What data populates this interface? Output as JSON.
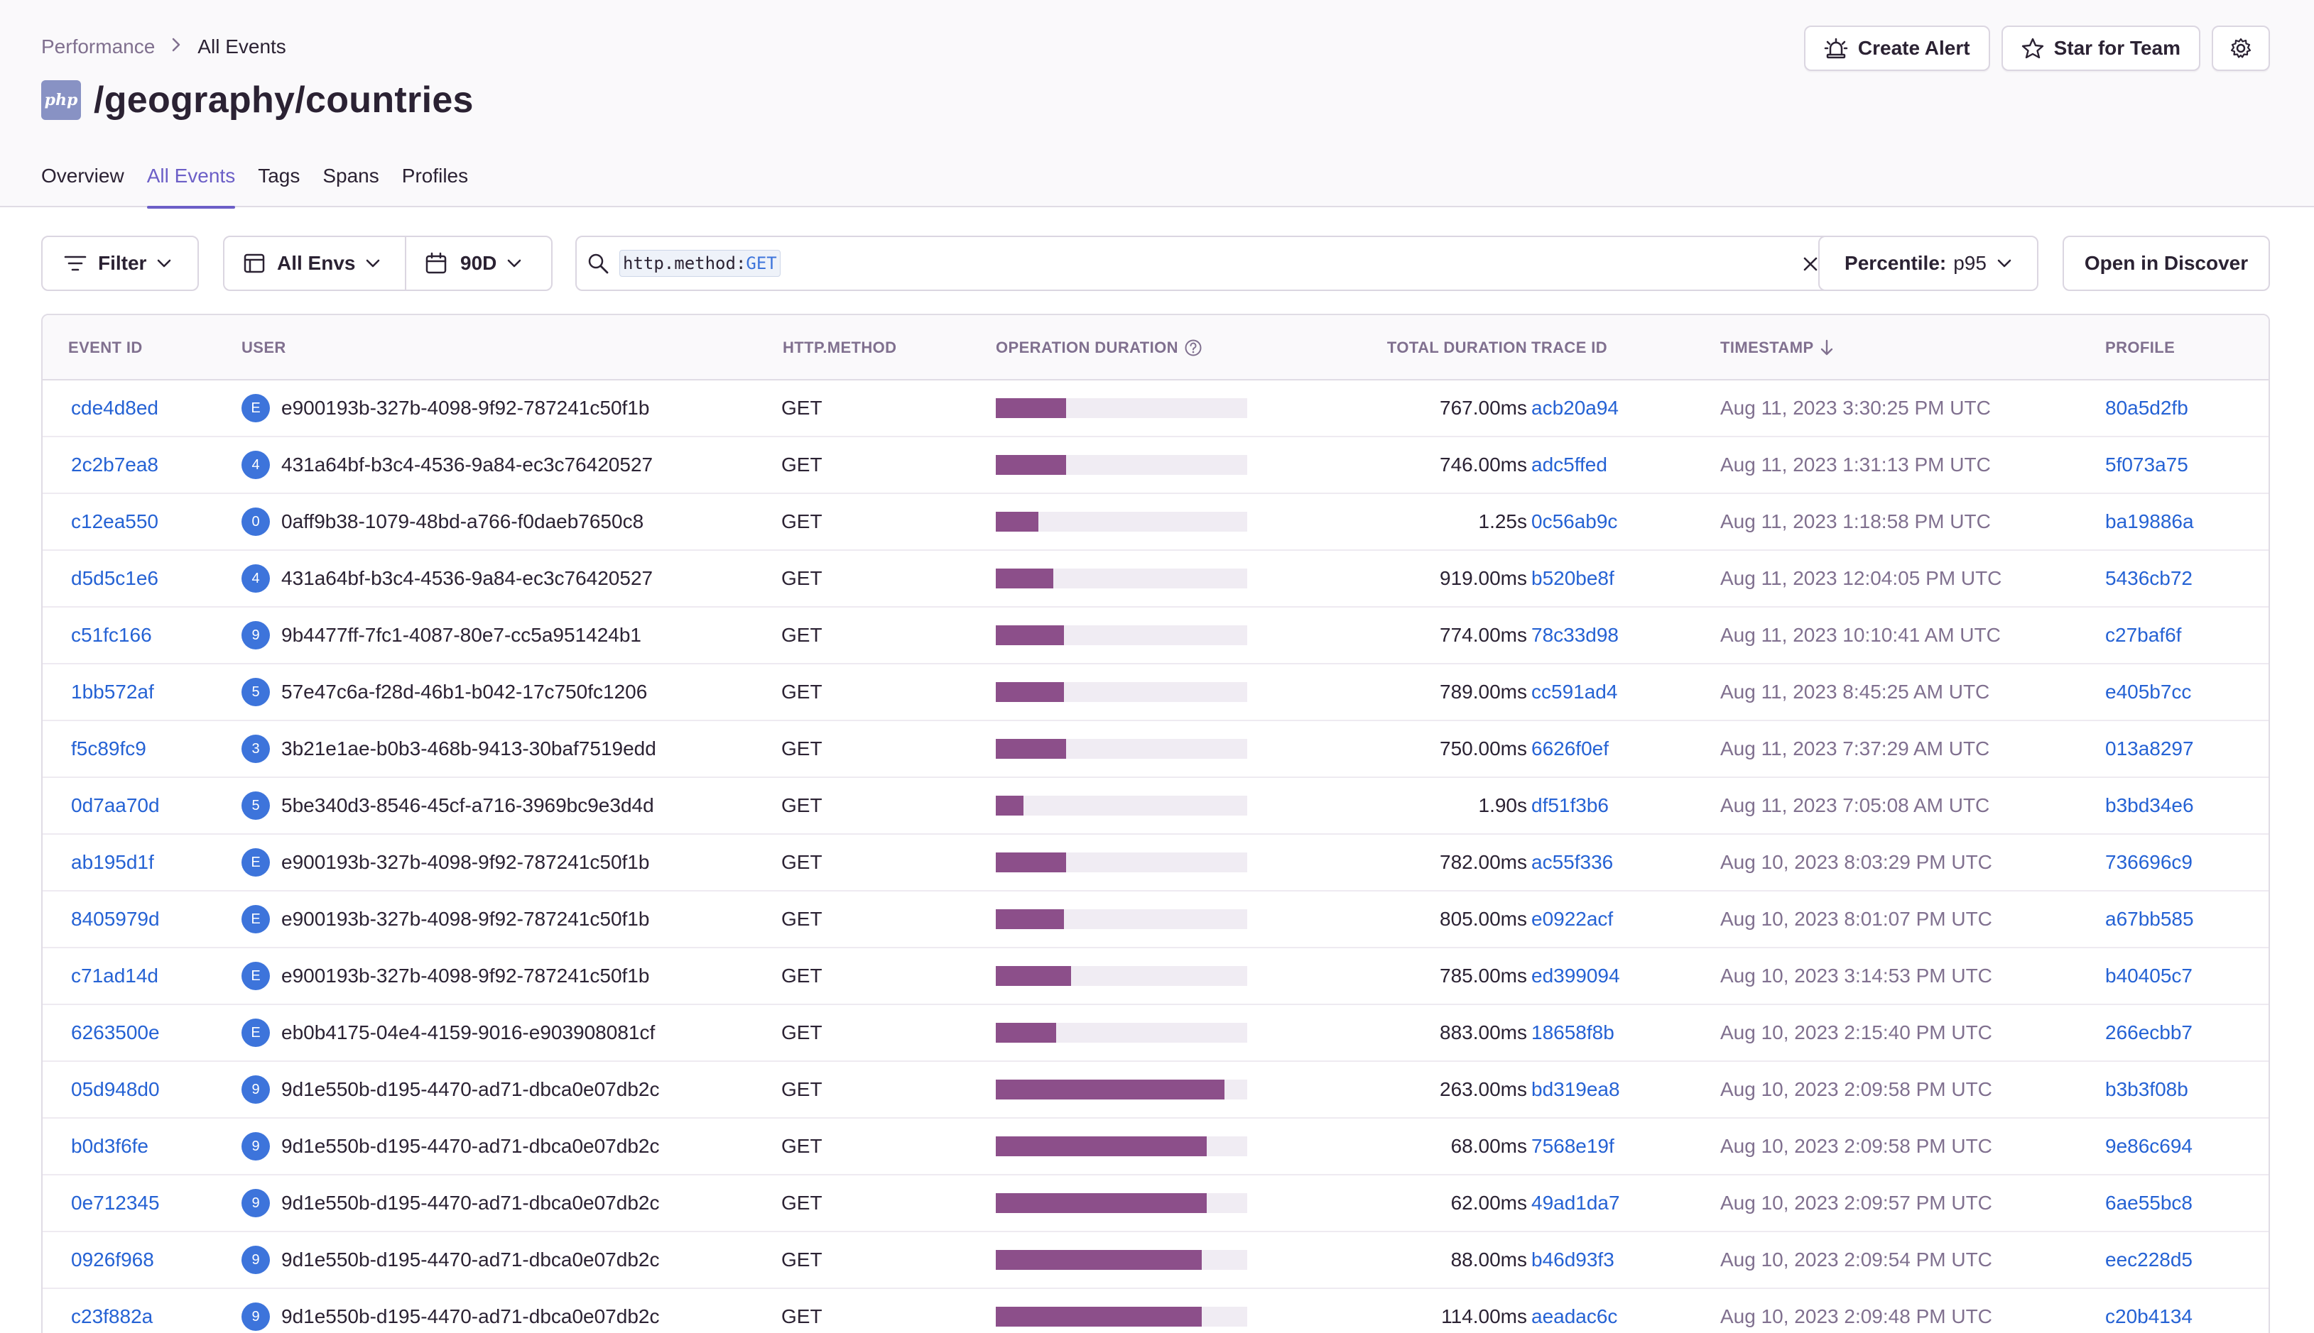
{
  "breadcrumb": {
    "parent": "Performance",
    "current": "All Events"
  },
  "header": {
    "platform_badge": "php",
    "title": "/geography/countries"
  },
  "actions": {
    "create_alert": "Create Alert",
    "star_for_team": "Star for Team"
  },
  "tabs": [
    "Overview",
    "All Events",
    "Tags",
    "Spans",
    "Profiles"
  ],
  "active_tab": "All Events",
  "filters": {
    "filter_label": "Filter",
    "env_label": "All Envs",
    "period_label": "90D",
    "search_key": "http.method:",
    "search_value": "GET",
    "percentile_label": "Percentile:",
    "percentile_value": "p95",
    "open_discover": "Open in Discover"
  },
  "columns": {
    "event_id": "EVENT ID",
    "user": "USER",
    "http_method": "HTTP.METHOD",
    "operation_duration": "OPERATION DURATION",
    "total_duration": "TOTAL DURATION",
    "trace_id": "TRACE ID",
    "timestamp": "TIMESTAMP",
    "profile": "PROFILE"
  },
  "colors": {
    "accent": "#6c5fc7",
    "link": "#2562d4",
    "bar": "#8c4f8a",
    "avatar": "#3d74db"
  },
  "rows": [
    {
      "event_id": "cde4d8ed",
      "avatar": "E",
      "user": "e900193b-327b-4098-9f92-787241c50f1b",
      "method": "GET",
      "op_fraction": 0.28,
      "total": "767.00ms",
      "trace": "acb20a94",
      "timestamp": "Aug 11, 2023 3:30:25 PM UTC",
      "profile": "80a5d2fb"
    },
    {
      "event_id": "2c2b7ea8",
      "avatar": "4",
      "user": "431a64bf-b3c4-4536-9a84-ec3c76420527",
      "method": "GET",
      "op_fraction": 0.28,
      "total": "746.00ms",
      "trace": "adc5ffed",
      "timestamp": "Aug 11, 2023 1:31:13 PM UTC",
      "profile": "5f073a75"
    },
    {
      "event_id": "c12ea550",
      "avatar": "0",
      "user": "0aff9b38-1079-48bd-a766-f0daeb7650c8",
      "method": "GET",
      "op_fraction": 0.17,
      "total": "1.25s",
      "trace": "0c56ab9c",
      "timestamp": "Aug 11, 2023 1:18:58 PM UTC",
      "profile": "ba19886a"
    },
    {
      "event_id": "d5d5c1e6",
      "avatar": "4",
      "user": "431a64bf-b3c4-4536-9a84-ec3c76420527",
      "method": "GET",
      "op_fraction": 0.23,
      "total": "919.00ms",
      "trace": "b520be8f",
      "timestamp": "Aug 11, 2023 12:04:05 PM UTC",
      "profile": "5436cb72"
    },
    {
      "event_id": "c51fc166",
      "avatar": "9",
      "user": "9b4477ff-7fc1-4087-80e7-cc5a951424b1",
      "method": "GET",
      "op_fraction": 0.27,
      "total": "774.00ms",
      "trace": "78c33d98",
      "timestamp": "Aug 11, 2023 10:10:41 AM UTC",
      "profile": "c27baf6f"
    },
    {
      "event_id": "1bb572af",
      "avatar": "5",
      "user": "57e47c6a-f28d-46b1-b042-17c750fc1206",
      "method": "GET",
      "op_fraction": 0.27,
      "total": "789.00ms",
      "trace": "cc591ad4",
      "timestamp": "Aug 11, 2023 8:45:25 AM UTC",
      "profile": "e405b7cc"
    },
    {
      "event_id": "f5c89fc9",
      "avatar": "3",
      "user": "3b21e1ae-b0b3-468b-9413-30baf7519edd",
      "method": "GET",
      "op_fraction": 0.28,
      "total": "750.00ms",
      "trace": "6626f0ef",
      "timestamp": "Aug 11, 2023 7:37:29 AM UTC",
      "profile": "013a8297"
    },
    {
      "event_id": "0d7aa70d",
      "avatar": "5",
      "user": "5be340d3-8546-45cf-a716-3969bc9e3d4d",
      "method": "GET",
      "op_fraction": 0.11,
      "total": "1.90s",
      "trace": "df51f3b6",
      "timestamp": "Aug 11, 2023 7:05:08 AM UTC",
      "profile": "b3bd34e6"
    },
    {
      "event_id": "ab195d1f",
      "avatar": "E",
      "user": "e900193b-327b-4098-9f92-787241c50f1b",
      "method": "GET",
      "op_fraction": 0.28,
      "total": "782.00ms",
      "trace": "ac55f336",
      "timestamp": "Aug 10, 2023 8:03:29 PM UTC",
      "profile": "736696c9"
    },
    {
      "event_id": "8405979d",
      "avatar": "E",
      "user": "e900193b-327b-4098-9f92-787241c50f1b",
      "method": "GET",
      "op_fraction": 0.27,
      "total": "805.00ms",
      "trace": "e0922acf",
      "timestamp": "Aug 10, 2023 8:01:07 PM UTC",
      "profile": "a67bb585"
    },
    {
      "event_id": "c71ad14d",
      "avatar": "E",
      "user": "e900193b-327b-4098-9f92-787241c50f1b",
      "method": "GET",
      "op_fraction": 0.3,
      "total": "785.00ms",
      "trace": "ed399094",
      "timestamp": "Aug 10, 2023 3:14:53 PM UTC",
      "profile": "b40405c7"
    },
    {
      "event_id": "6263500e",
      "avatar": "E",
      "user": "eb0b4175-04e4-4159-9016-e903908081cf",
      "method": "GET",
      "op_fraction": 0.24,
      "total": "883.00ms",
      "trace": "18658f8b",
      "timestamp": "Aug 10, 2023 2:15:40 PM UTC",
      "profile": "266ecbb7"
    },
    {
      "event_id": "05d948d0",
      "avatar": "9",
      "user": "9d1e550b-d195-4470-ad71-dbca0e07db2c",
      "method": "GET",
      "op_fraction": 0.91,
      "total": "263.00ms",
      "trace": "bd319ea8",
      "timestamp": "Aug 10, 2023 2:09:58 PM UTC",
      "profile": "b3b3f08b"
    },
    {
      "event_id": "b0d3f6fe",
      "avatar": "9",
      "user": "9d1e550b-d195-4470-ad71-dbca0e07db2c",
      "method": "GET",
      "op_fraction": 0.84,
      "total": "68.00ms",
      "trace": "7568e19f",
      "timestamp": "Aug 10, 2023 2:09:58 PM UTC",
      "profile": "9e86c694"
    },
    {
      "event_id": "0e712345",
      "avatar": "9",
      "user": "9d1e550b-d195-4470-ad71-dbca0e07db2c",
      "method": "GET",
      "op_fraction": 0.84,
      "total": "62.00ms",
      "trace": "49ad1da7",
      "timestamp": "Aug 10, 2023 2:09:57 PM UTC",
      "profile": "6ae55bc8"
    },
    {
      "event_id": "0926f968",
      "avatar": "9",
      "user": "9d1e550b-d195-4470-ad71-dbca0e07db2c",
      "method": "GET",
      "op_fraction": 0.82,
      "total": "88.00ms",
      "trace": "b46d93f3",
      "timestamp": "Aug 10, 2023 2:09:54 PM UTC",
      "profile": "eec228d5"
    },
    {
      "event_id": "c23f882a",
      "avatar": "9",
      "user": "9d1e550b-d195-4470-ad71-dbca0e07db2c",
      "method": "GET",
      "op_fraction": 0.82,
      "total": "114.00ms",
      "trace": "aeadac6c",
      "timestamp": "Aug 10, 2023 2:09:48 PM UTC",
      "profile": "c20b4134"
    }
  ]
}
